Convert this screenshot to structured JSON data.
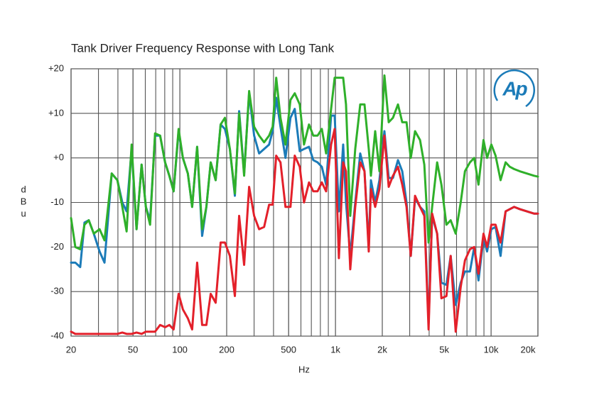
{
  "chart_data": {
    "type": "line",
    "title": "Tank Driver Frequency Response with Long Tank",
    "x_label": "Hz",
    "y_label": "dBu",
    "logo": "Ap",
    "log_x": true,
    "grid": true,
    "xlim": [
      20,
      20000
    ],
    "ylim": [
      -40,
      20
    ],
    "xticks": [
      20,
      50,
      100,
      200,
      500,
      {
        "value": 1000,
        "label": "1k"
      },
      {
        "value": 2000,
        "label": "2k"
      },
      {
        "value": 5000,
        "label": "5k"
      },
      {
        "value": 10000,
        "label": "10k"
      },
      {
        "value": 20000,
        "label": "20k"
      }
    ],
    "yticks": [
      {
        "value": 20,
        "label": "+20"
      },
      {
        "value": 10,
        "label": "+10"
      },
      {
        "value": 0,
        "label": "+0"
      },
      -10,
      -20,
      -30,
      -40
    ],
    "x": [
      20,
      21.3,
      22.9,
      24.4,
      26,
      28,
      30.5,
      32.8,
      36.5,
      39.7,
      42.7,
      45.5,
      49,
      52.7,
      56.8,
      60.5,
      64.4,
      69.3,
      74.7,
      80.4,
      85.6,
      91.2,
      98.2,
      104.6,
      112.6,
      120,
      129.2,
      139.1,
      148.1,
      157.9,
      169.9,
      182.9,
      194.8,
      209.7,
      225.8,
      240.5,
      258.9,
      278.8,
      300.2,
      323.2,
      348,
      374.7,
      394.9,
      416.2,
      443.4,
      477.4,
      514,
      547.6,
      589.6,
      628.1,
      676.3,
      720.4,
      767.5,
      817.6,
      871,
      937.8,
      988.5,
      1052,
      1121,
      1169,
      1245,
      1340,
      1443,
      1537,
      1637,
      1690,
      1800,
      1917,
      2064,
      2199,
      2342,
      2522,
      2687,
      2862,
      3048,
      3247,
      3496,
      3724,
      3967,
      4182,
      4503,
      4796,
      5165,
      5501,
      5924,
      6379,
      6795,
      7317,
      7794,
      8302,
      8940,
      9426,
      10040,
      10690,
      11510,
      12400,
      13200,
      14060,
      15300,
      16990,
      18870,
      20000
    ],
    "series": [
      {
        "name": "Blue",
        "color": "#1b7bb8",
        "values": [
          -23.5,
          -23.5,
          -24.5,
          -14.5,
          -14,
          -17,
          -21,
          -23.5,
          -3.5,
          -5,
          -10,
          -12,
          2,
          -16,
          -1.5,
          -11,
          -14,
          5,
          5,
          -1,
          -4,
          -7.5,
          6,
          0,
          -3.5,
          -11,
          2.5,
          -17.5,
          -11,
          -1,
          -5,
          7.5,
          6.5,
          2,
          -8.5,
          10.5,
          -3.5,
          14.5,
          5,
          1,
          2,
          3,
          6,
          13.5,
          7,
          0,
          9,
          11,
          1.5,
          2,
          2.5,
          -0.5,
          -1,
          -2,
          -6,
          9.5,
          9.5,
          -12,
          3,
          -10,
          -22,
          -10,
          1,
          -3,
          -20,
          -5,
          -10,
          -5,
          6,
          -4.5,
          -4.5,
          -0.5,
          -3,
          -10,
          -22,
          -9,
          -11,
          -12,
          -37,
          -13,
          -17,
          -28,
          -28.5,
          -22,
          -33,
          -28,
          -25.5,
          -25.5,
          -20,
          -27.5,
          -18,
          -21,
          -16,
          -15.5,
          -22,
          -12,
          -11.5,
          -11,
          -11.5,
          -12,
          -12.5,
          -12.5
        ]
      },
      {
        "name": "Green",
        "color": "#2fb02a",
        "values": [
          -13.5,
          -20,
          -20.5,
          -15,
          -14,
          -17,
          -16,
          -18.5,
          -3.5,
          -5,
          -11,
          -16.5,
          3,
          -16,
          -1.5,
          -11,
          -15,
          5.5,
          5,
          -1,
          -4,
          -7.5,
          6.5,
          0,
          -3.5,
          -11,
          2.5,
          -16,
          -11,
          -1,
          -5,
          7.5,
          9,
          2,
          -8,
          10,
          -4,
          15,
          7,
          5,
          3.5,
          5,
          7,
          18,
          9,
          3,
          13,
          14.5,
          12,
          3,
          7.5,
          5,
          5,
          6.5,
          1,
          11,
          18,
          18,
          18,
          12,
          -13,
          2,
          12,
          12,
          2,
          -4,
          6,
          -3,
          18.5,
          8,
          9,
          12,
          8,
          8,
          0,
          6,
          4,
          -1.5,
          -19,
          -11,
          -1,
          -6,
          -15,
          -14,
          -17,
          -10,
          -3,
          -1,
          0,
          -6,
          4,
          0,
          3,
          0.5,
          -5,
          -1,
          -2,
          -2.5,
          -3,
          -3.5,
          -4,
          -4.2
        ]
      },
      {
        "name": "Red",
        "color": "#e3202a",
        "values": [
          -39,
          -39.5,
          -39.5,
          -39.5,
          -39.5,
          -39.5,
          -39.5,
          -39.5,
          -39.5,
          -39.5,
          -39.2,
          -39.5,
          -39.5,
          -39.2,
          -39.5,
          -39,
          -39,
          -39,
          -37.5,
          -38,
          -37.5,
          -38.5,
          -30.5,
          -34,
          -36,
          -38.5,
          -23.5,
          -37.5,
          -37.5,
          -30.5,
          -32.5,
          -19,
          -19,
          -22,
          -31,
          -13,
          -24,
          -6.5,
          -13,
          -16,
          -15.5,
          -10.5,
          -10.5,
          0.5,
          -1,
          -11,
          -11,
          0.5,
          -2,
          -10,
          -5.5,
          -7.5,
          -7.5,
          -5.5,
          -7.5,
          3,
          6.5,
          -22.5,
          -1,
          -3,
          -25,
          -11,
          -1,
          -3,
          -21,
          -7,
          -11,
          -7,
          5,
          -6.5,
          -4,
          -2,
          -6,
          -11,
          -22,
          -8.5,
          -11,
          -13,
          -38.5,
          -12.5,
          -17,
          -31.5,
          -31,
          -22,
          -39,
          -29,
          -23,
          -20.5,
          -20,
          -26,
          -17,
          -20,
          -15,
          -15,
          -19,
          -12,
          -11.5,
          -11,
          -11.5,
          -12,
          -12.5,
          -12.5
        ]
      }
    ]
  }
}
